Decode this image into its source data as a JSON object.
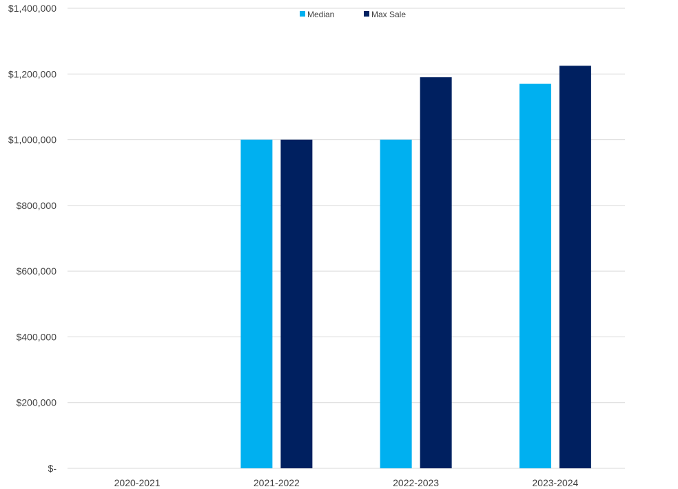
{
  "chart_data": {
    "type": "bar",
    "title": "",
    "xlabel": "",
    "ylabel": "",
    "categories": [
      "2020-2021",
      "2021-2022",
      "2022-2023",
      "2023-2024"
    ],
    "series": [
      {
        "name": "Median",
        "color": "#00B0F0",
        "values": [
          0,
          1000000,
          1000000,
          1170000
        ]
      },
      {
        "name": "Max Sale",
        "color": "#002060",
        "values": [
          0,
          1000000,
          1190000,
          1225000
        ]
      }
    ],
    "ylim": [
      0,
      1400000
    ],
    "yticks": [
      {
        "value": 0,
        "label": "$-"
      },
      {
        "value": 200000,
        "label": "$200,000"
      },
      {
        "value": 400000,
        "label": "$400,000"
      },
      {
        "value": 600000,
        "label": "$600,000"
      },
      {
        "value": 800000,
        "label": "$800,000"
      },
      {
        "value": 1000000,
        "label": "$1,000,000"
      },
      {
        "value": 1200000,
        "label": "$1,200,000"
      },
      {
        "value": 1400000,
        "label": "$1,400,000"
      }
    ],
    "grid": true,
    "legend_position": "top-center"
  }
}
